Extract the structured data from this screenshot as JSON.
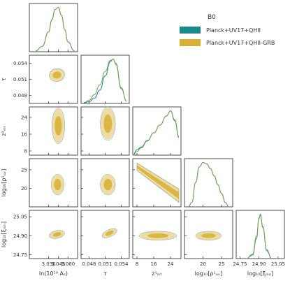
{
  "chart_data": {
    "type": "corner",
    "legend": {
      "title": "B0",
      "entries": [
        {
          "label": "Planck+UV17+QHII",
          "color": "#1a8a8a"
        },
        {
          "label": "Planck+UV17+QHII-GRB",
          "color": "#d9b13a"
        }
      ]
    },
    "series": [
      {
        "name": "Planck+UV17+QHII",
        "color": "#1a8a8a"
      },
      {
        "name": "Planck+UV17+QHII-GRB",
        "color": "#d9b13a"
      }
    ],
    "parameters": [
      {
        "key": "lnAs",
        "label": "ln(10¹⁰ Aₛ)",
        "range": [
          3.0,
          3.075
        ],
        "ticks": [
          3.03,
          3.045,
          3.06
        ],
        "tick_labels": [
          "3.030",
          "3.045",
          "3.060"
        ],
        "mean": 3.044,
        "sigma": 0.01
      },
      {
        "key": "tau",
        "label": "τ",
        "range": [
          0.0465,
          0.0555
        ],
        "ticks": [
          0.048,
          0.051,
          0.054
        ],
        "tick_labels": [
          "0.048",
          "0.051",
          "0.054"
        ],
        "mean": 0.0525,
        "sigma": 0.0012
      },
      {
        "key": "z1int",
        "label": "z¹ᵢₙₜ",
        "range": [
          6,
          29
        ],
        "ticks": [
          8,
          16,
          24
        ],
        "tick_labels": [
          "8",
          "16",
          "24"
        ],
        "mean": 20,
        "sigma": 6
      },
      {
        "key": "rhoUV",
        "label": "log₁₀[ρ¹ᵤᵥ]",
        "range": [
          15,
          28
        ],
        "ticks": [
          20,
          25
        ],
        "tick_labels": [
          "20",
          "25"
        ],
        "mean": 21,
        "sigma": 2.5
      },
      {
        "key": "xi",
        "label": "log₁₀[ξᵢₒₙ]",
        "range": [
          24.72,
          25.1
        ],
        "ticks": [
          24.75,
          24.9,
          25.05
        ],
        "tick_labels": [
          "24.75",
          "24.90",
          "25.05"
        ],
        "mean": 24.91,
        "sigma": 0.03
      }
    ],
    "marginals": [
      {
        "param": "lnAs",
        "x": [
          3.01,
          3.02,
          3.03,
          3.035,
          3.04,
          3.045,
          3.05,
          3.055,
          3.06,
          3.07
        ],
        "series_values": [
          [
            0.02,
            0.12,
            0.45,
            0.72,
            0.95,
            1.0,
            0.82,
            0.5,
            0.22,
            0.02
          ],
          [
            0.02,
            0.12,
            0.45,
            0.72,
            0.95,
            1.0,
            0.82,
            0.5,
            0.22,
            0.02
          ]
        ]
      },
      {
        "param": "tau",
        "x": [
          0.047,
          0.048,
          0.049,
          0.05,
          0.051,
          0.052,
          0.0525,
          0.053,
          0.054,
          0.055
        ],
        "series_values": [
          [
            0.01,
            0.04,
            0.12,
            0.3,
            0.62,
            0.95,
            1.0,
            0.9,
            0.35,
            0.05
          ],
          [
            0.02,
            0.07,
            0.2,
            0.42,
            0.72,
            0.97,
            1.0,
            0.88,
            0.33,
            0.05
          ]
        ]
      },
      {
        "param": "z1int",
        "x": [
          6,
          8,
          10,
          13,
          16,
          19,
          22,
          24,
          26,
          28
        ],
        "series_values": [
          [
            0.0,
            0.12,
            0.18,
            0.33,
            0.5,
            0.68,
            0.88,
            1.0,
            0.78,
            0.4
          ],
          [
            0.0,
            0.08,
            0.16,
            0.32,
            0.5,
            0.68,
            0.88,
            1.0,
            0.8,
            0.42
          ]
        ]
      },
      {
        "param": "rhoUV",
        "x": [
          16,
          17,
          18,
          19,
          20,
          21,
          22,
          23,
          24,
          25,
          26,
          27
        ],
        "series_values": [
          [
            0.0,
            0.1,
            0.55,
            0.9,
            1.0,
            0.97,
            0.86,
            0.7,
            0.5,
            0.3,
            0.1,
            0.0
          ],
          [
            0.0,
            0.1,
            0.55,
            0.9,
            1.0,
            0.97,
            0.86,
            0.7,
            0.5,
            0.3,
            0.1,
            0.0
          ]
        ]
      },
      {
        "param": "xi",
        "x": [
          24.8,
          24.85,
          24.88,
          24.9,
          24.91,
          24.93,
          24.96,
          25.0
        ],
        "series_values": [
          [
            0.0,
            0.08,
            0.45,
            0.9,
            1.0,
            0.72,
            0.18,
            0.0
          ],
          [
            0.0,
            0.1,
            0.5,
            0.92,
            0.97,
            0.7,
            0.2,
            0.0
          ]
        ]
      }
    ],
    "contours": [
      {
        "x": "lnAs",
        "y": "tau",
        "cx": 3.043,
        "cy": 0.0518,
        "rx": 0.012,
        "ry": 0.0012,
        "rot": -10
      },
      {
        "x": "lnAs",
        "y": "z1int",
        "cx": 3.045,
        "cy": 20,
        "rx": 0.01,
        "ry": 8.5,
        "rot": 0
      },
      {
        "x": "tau",
        "y": "z1int",
        "cx": 0.0515,
        "cy": 21,
        "rx": 0.0014,
        "ry": 8.0,
        "rot": 0
      },
      {
        "x": "lnAs",
        "y": "rhoUV",
        "cx": 3.044,
        "cy": 21,
        "rx": 0.01,
        "ry": 2.8,
        "rot": 0
      },
      {
        "x": "tau",
        "y": "rhoUV",
        "cx": 0.0515,
        "cy": 21,
        "rx": 0.0014,
        "ry": 2.8,
        "rot": 0
      },
      {
        "x": "z1int",
        "y": "rhoUV",
        "band": true,
        "from": [
          8,
          25.8
        ],
        "to": [
          28,
          18
        ],
        "width": 1.0
      },
      {
        "x": "lnAs",
        "y": "xi",
        "cx": 3.043,
        "cy": 24.91,
        "rx": 0.012,
        "ry": 0.03,
        "rot": -12
      },
      {
        "x": "tau",
        "y": "xi",
        "cx": 0.0518,
        "cy": 24.92,
        "rx": 0.0015,
        "ry": 0.028,
        "rot": -25
      },
      {
        "x": "z1int",
        "y": "xi",
        "cx": 18,
        "cy": 24.9,
        "rx": 9.0,
        "ry": 0.035,
        "rot": 0
      },
      {
        "x": "rhoUV",
        "y": "xi",
        "cx": 21.5,
        "cy": 24.9,
        "rx": 3.5,
        "ry": 0.035,
        "rot": 0
      }
    ],
    "grid": false
  }
}
